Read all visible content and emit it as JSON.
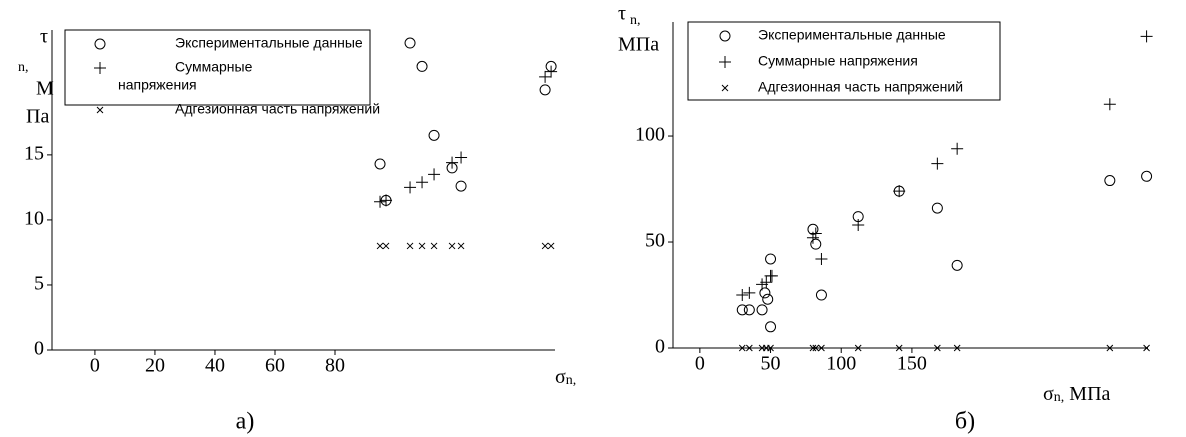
{
  "chart_data": [
    {
      "type": "scatter",
      "caption": "а)",
      "y_label": [
        "τ",
        "n,",
        "М",
        "Па"
      ],
      "x_label": [
        "σ",
        "n,"
      ],
      "xlim": [
        -14.3,
        153.3
      ],
      "ylim": [
        0,
        24.6
      ],
      "xticks": [
        0,
        20,
        40,
        60,
        80
      ],
      "yticks": [
        0,
        5,
        10,
        15
      ],
      "series": [
        {
          "name": "Экспериментальные данные",
          "marker": "circle",
          "color": "#000000",
          "x": [
            95,
            97,
            105,
            109,
            113,
            119,
            122,
            150,
            152
          ],
          "values": [
            14.3,
            11.5,
            23.6,
            21.8,
            16.5,
            14,
            12.6,
            20,
            21.8
          ]
        },
        {
          "name": "Суммарные напряжения",
          "marker": "plus",
          "color": "#000000",
          "x": [
            95,
            97,
            105,
            109,
            113,
            119,
            122,
            150,
            152
          ],
          "values": [
            11.4,
            11.5,
            12.5,
            12.9,
            13.5,
            14.4,
            14.8,
            21,
            21.4
          ]
        },
        {
          "name": "Адгезионная часть напряжений",
          "marker": "x",
          "color": "#000000",
          "x": [
            95,
            97,
            105,
            109,
            113,
            119,
            122,
            150,
            152
          ],
          "values": [
            8,
            8,
            8,
            8,
            8,
            8,
            8,
            8,
            8
          ]
        }
      ]
    },
    {
      "type": "scatter",
      "caption": "б)",
      "y_label": [
        "τ",
        "n,",
        "МПа"
      ],
      "x_label": [
        "σ",
        "n,",
        " МПа"
      ],
      "xlim": [
        -19,
        317
      ],
      "ylim": [
        0,
        153.8
      ],
      "xticks": [
        0,
        50,
        100,
        150
      ],
      "yticks": [
        0,
        50,
        100
      ],
      "series": [
        {
          "name": "Экспериментальные данные",
          "marker": "circle",
          "color": "#000000",
          "x": [
            30,
            35,
            44,
            46,
            48,
            50,
            50,
            80,
            82,
            86,
            112,
            141,
            168,
            182,
            290,
            316
          ],
          "values": [
            18,
            18,
            18,
            26,
            23,
            10,
            42,
            56,
            49,
            25,
            62,
            74,
            66,
            39,
            79,
            81
          ]
        },
        {
          "name": "Суммарные напряжения",
          "marker": "plus",
          "color": "#000000",
          "x": [
            30,
            35,
            44,
            47,
            50,
            51,
            80,
            82,
            86,
            112,
            141,
            168,
            182,
            290,
            316
          ],
          "values": [
            25,
            26,
            30,
            31,
            34,
            34,
            52,
            54,
            42,
            58,
            74,
            87,
            94,
            115,
            147
          ]
        },
        {
          "name": "Адгезионная часть напряжений",
          "marker": "x",
          "color": "#000000",
          "x": [
            30,
            35,
            44,
            47,
            50,
            80,
            82,
            86,
            112,
            141,
            168,
            182,
            290,
            316
          ],
          "values": [
            0,
            0,
            0,
            0,
            0,
            0,
            0,
            0,
            0,
            0,
            0,
            0,
            0,
            0
          ]
        }
      ]
    }
  ]
}
